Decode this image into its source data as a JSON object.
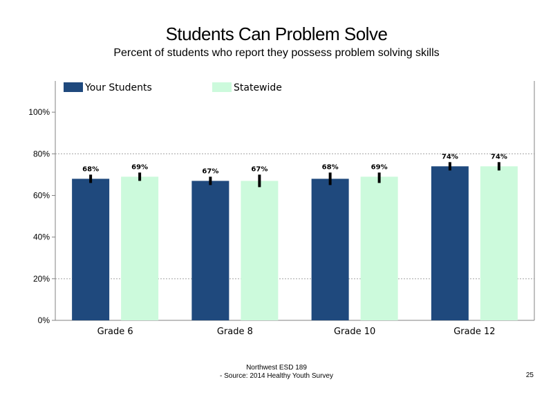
{
  "slide": {
    "title": "Students Can Problem Solve",
    "subtitle": "Percent of students who report they possess problem solving skills",
    "footer_line1": "Northwest ESD  189",
    "footer_line2": "- Source: 2014 Healthy  Youth Survey",
    "page_number": "25"
  },
  "colors": {
    "your_students": "#1f497d",
    "statewide": "#ccfadc",
    "error_bar": "#000000",
    "gridline": "#a0a0a0",
    "axis": "#808080"
  },
  "chart_data": {
    "type": "bar",
    "title": "Students Can Problem Solve",
    "subtitle": "Percent of students who report they possess problem solving skills",
    "categories": [
      "Grade 6",
      "Grade 8",
      "Grade 10",
      "Grade 12"
    ],
    "series": [
      {
        "name": "Your Students",
        "values": [
          68,
          67,
          68,
          74
        ],
        "labels": [
          "68%",
          "67%",
          "68%",
          "74%"
        ],
        "error_low": [
          66,
          65,
          65,
          72
        ],
        "error_high": [
          70,
          69,
          71,
          76
        ]
      },
      {
        "name": "Statewide",
        "values": [
          69,
          67,
          69,
          74
        ],
        "labels": [
          "69%",
          "67%",
          "69%",
          "74%"
        ],
        "error_low": [
          67,
          64,
          66,
          72
        ],
        "error_high": [
          71,
          70,
          71,
          76
        ]
      }
    ],
    "y_ticks": [
      0,
      20,
      40,
      60,
      80,
      100
    ],
    "y_tick_labels": [
      "0%",
      "20%",
      "40%",
      "60%",
      "80%",
      "100%"
    ],
    "ylim": [
      0,
      115
    ],
    "gridlines": [
      20,
      80
    ],
    "legend_position": "top-left"
  }
}
